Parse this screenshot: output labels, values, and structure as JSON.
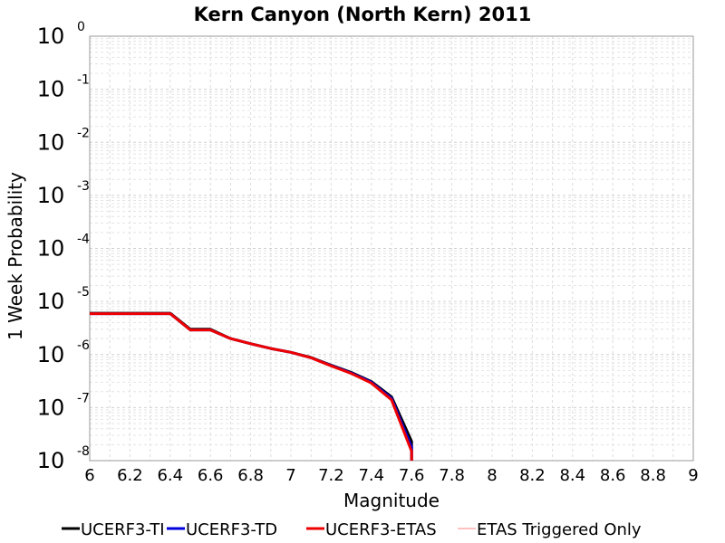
{
  "chart_data": {
    "type": "line",
    "title": "Kern Canyon (North Kern) 2011",
    "xlabel": "Magnitude",
    "ylabel": "1 Week Probability",
    "xlim": [
      6,
      9
    ],
    "ylim": [
      1e-08,
      1
    ],
    "yscale": "log",
    "grid": true,
    "legend_position": "bottom",
    "x_ticks": [
      "6",
      "6.2",
      "6.4",
      "6.6",
      "6.8",
      "7",
      "7.2",
      "7.4",
      "7.6",
      "7.8",
      "8",
      "8.2",
      "8.4",
      "8.6",
      "8.8",
      "9"
    ],
    "y_ticks": [
      {
        "base": "10",
        "exp": "0"
      },
      {
        "base": "10",
        "exp": "-1"
      },
      {
        "base": "10",
        "exp": "-2"
      },
      {
        "base": "10",
        "exp": "-3"
      },
      {
        "base": "10",
        "exp": "-4"
      },
      {
        "base": "10",
        "exp": "-5"
      },
      {
        "base": "10",
        "exp": "-6"
      },
      {
        "base": "10",
        "exp": "-7"
      },
      {
        "base": "10",
        "exp": "-8"
      }
    ],
    "series": [
      {
        "name": "UCERF3-TI",
        "color": "#000000",
        "width": 3,
        "x": [
          6.0,
          6.1,
          6.2,
          6.3,
          6.4,
          6.5,
          6.6,
          6.7,
          6.8,
          6.9,
          7.0,
          7.1,
          7.2,
          7.3,
          7.4,
          7.5,
          7.6,
          7.6
        ],
        "y": [
          6e-06,
          6e-06,
          6e-06,
          6e-06,
          6e-06,
          3e-06,
          3e-06,
          2e-06,
          1.6e-06,
          1.3e-06,
          1.1e-06,
          8.8e-07,
          6.3e-07,
          4.6e-07,
          3.1e-07,
          1.6e-07,
          2.3e-08,
          1e-08
        ]
      },
      {
        "name": "UCERF3-TD",
        "color": "#0000dd",
        "width": 3,
        "x": [
          6.0,
          6.1,
          6.2,
          6.3,
          6.4,
          6.5,
          6.6,
          6.7,
          6.8,
          6.9,
          7.0,
          7.1,
          7.2,
          7.3,
          7.4,
          7.5,
          7.6,
          7.6
        ],
        "y": [
          5.9e-06,
          5.9e-06,
          5.9e-06,
          5.9e-06,
          5.9e-06,
          2.9e-06,
          2.9e-06,
          2e-06,
          1.6e-06,
          1.3e-06,
          1.1e-06,
          8.7e-07,
          6.2e-07,
          4.5e-07,
          3e-07,
          1.5e-07,
          1.8e-08,
          1e-08
        ]
      },
      {
        "name": "UCERF3-ETAS",
        "color": "#ee0000",
        "width": 3,
        "x": [
          6.0,
          6.1,
          6.2,
          6.3,
          6.4,
          6.5,
          6.6,
          6.7,
          6.8,
          6.9,
          7.0,
          7.1,
          7.2,
          7.3,
          7.4,
          7.5,
          7.6,
          7.6
        ],
        "y": [
          5.9e-06,
          5.9e-06,
          5.9e-06,
          5.9e-06,
          5.9e-06,
          2.9e-06,
          2.9e-06,
          2e-06,
          1.6e-06,
          1.3e-06,
          1.1e-06,
          8.7e-07,
          6.1e-07,
          4.4e-07,
          2.9e-07,
          1.4e-07,
          1.5e-08,
          1e-08
        ]
      },
      {
        "name": "ETAS Triggered Only",
        "color": "#ff8080",
        "width": 1,
        "x": [],
        "y": []
      }
    ]
  }
}
